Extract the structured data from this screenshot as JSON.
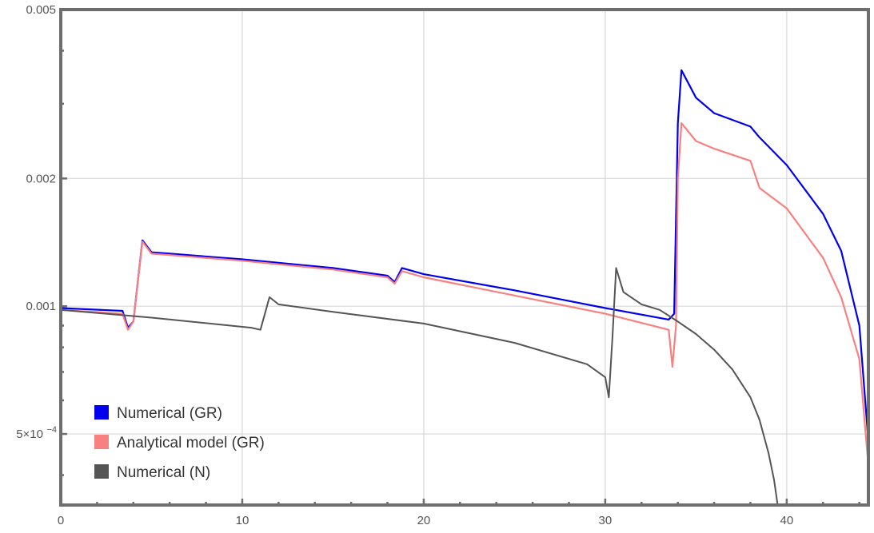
{
  "chart_data": {
    "type": "line",
    "title": "",
    "xlabel": "",
    "ylabel": "",
    "yscale": "log",
    "xlim": [
      0,
      44.5
    ],
    "ylim": [
      0.00034,
      0.005
    ],
    "grid": true,
    "legend_position": "bottom-left",
    "x_ticks": [
      {
        "value": 0,
        "label": "0"
      },
      {
        "value": 10,
        "label": "10"
      },
      {
        "value": 20,
        "label": "20"
      },
      {
        "value": 30,
        "label": "30"
      },
      {
        "value": 40,
        "label": "40"
      }
    ],
    "y_ticks": [
      {
        "value": 0.0005,
        "label": "5×10",
        "exp": "−4"
      },
      {
        "value": 0.001,
        "label": "0.001",
        "exp": ""
      },
      {
        "value": 0.002,
        "label": "0.002",
        "exp": ""
      },
      {
        "value": 0.005,
        "label": "0.005",
        "exp": ""
      }
    ],
    "series": [
      {
        "name": "Numerical (GR)",
        "color": "#0000ee",
        "points": [
          [
            0,
            0.00099
          ],
          [
            3.4,
            0.000975
          ],
          [
            3.7,
            0.00089
          ],
          [
            4.0,
            0.00092
          ],
          [
            4.5,
            0.00143
          ],
          [
            5.0,
            0.00134
          ],
          [
            6,
            0.00133
          ],
          [
            10,
            0.00129
          ],
          [
            15,
            0.00123
          ],
          [
            18.0,
            0.00118
          ],
          [
            18.4,
            0.00114
          ],
          [
            18.8,
            0.00123
          ],
          [
            20,
            0.00119
          ],
          [
            25,
            0.00109
          ],
          [
            30,
            0.00099
          ],
          [
            33.5,
            0.00093
          ],
          [
            33.8,
            0.00096
          ],
          [
            34.0,
            0.0027
          ],
          [
            34.2,
            0.0036
          ],
          [
            35,
            0.0031
          ],
          [
            36,
            0.00285
          ],
          [
            38,
            0.00265
          ],
          [
            38.5,
            0.0025
          ],
          [
            40,
            0.00215
          ],
          [
            42,
            0.00165
          ],
          [
            43,
            0.00135
          ],
          [
            44,
            0.0009
          ],
          [
            44.5,
            0.00048
          ]
        ]
      },
      {
        "name": "Analytical model (GR)",
        "color": "#f88080",
        "points": [
          [
            0,
            0.00098
          ],
          [
            3.4,
            0.00096
          ],
          [
            3.7,
            0.00088
          ],
          [
            4.0,
            0.00092
          ],
          [
            4.5,
            0.00142
          ],
          [
            5.0,
            0.00133
          ],
          [
            6,
            0.00132
          ],
          [
            10,
            0.00128
          ],
          [
            15,
            0.00122
          ],
          [
            18.0,
            0.00117
          ],
          [
            18.4,
            0.00113
          ],
          [
            18.8,
            0.00121
          ],
          [
            20,
            0.00117
          ],
          [
            25,
            0.00106
          ],
          [
            30,
            0.00096
          ],
          [
            33.5,
            0.00088
          ],
          [
            33.7,
            0.00072
          ],
          [
            33.9,
            0.0009
          ],
          [
            34.0,
            0.002
          ],
          [
            34.2,
            0.0027
          ],
          [
            35,
            0.00245
          ],
          [
            36,
            0.00235
          ],
          [
            38,
            0.0022
          ],
          [
            38.5,
            0.0019
          ],
          [
            40,
            0.0017
          ],
          [
            42,
            0.0013
          ],
          [
            43,
            0.00105
          ],
          [
            44,
            0.00075
          ],
          [
            44.5,
            0.00042
          ]
        ]
      },
      {
        "name": "Numerical (N)",
        "color": "#555555",
        "points": [
          [
            0,
            0.00098
          ],
          [
            5,
            0.00094
          ],
          [
            10.5,
            0.00089
          ],
          [
            11.0,
            0.00088
          ],
          [
            11.5,
            0.00105
          ],
          [
            12,
            0.00101
          ],
          [
            15,
            0.00097
          ],
          [
            20,
            0.00091
          ],
          [
            25,
            0.00082
          ],
          [
            29,
            0.00073
          ],
          [
            30.0,
            0.00068
          ],
          [
            30.2,
            0.00061
          ],
          [
            30.4,
            0.00085
          ],
          [
            30.6,
            0.00123
          ],
          [
            31,
            0.00108
          ],
          [
            32,
            0.00101
          ],
          [
            33,
            0.00098
          ],
          [
            34,
            0.00092
          ],
          [
            35,
            0.00086
          ],
          [
            36,
            0.00079
          ],
          [
            37,
            0.00071
          ],
          [
            38,
            0.00061
          ],
          [
            38.5,
            0.00054
          ],
          [
            39,
            0.00045
          ],
          [
            39.3,
            0.00039
          ],
          [
            39.5,
            0.00034
          ]
        ]
      }
    ]
  }
}
